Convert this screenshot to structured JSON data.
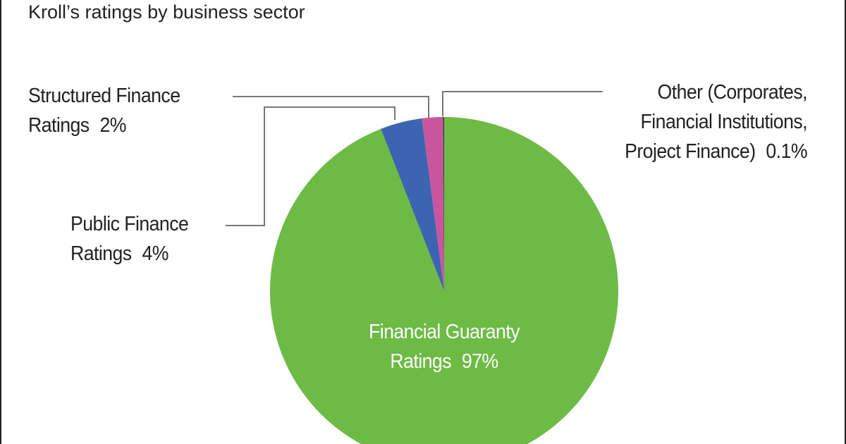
{
  "chart_data": {
    "type": "pie",
    "subtitle": "Kroll’s ratings by business sector",
    "categories": [
      "Financial Guaranty Ratings",
      "Public Finance Ratings",
      "Structured Finance Ratings",
      "Other (Corporates, Financial Institutions, Project Finance)"
    ],
    "values": [
      97,
      4,
      2,
      0.1
    ],
    "value_labels": [
      "97%",
      "4%",
      "2%",
      "0.1%"
    ],
    "colors": [
      "#6dbb45",
      "#3d64b0",
      "#c9559f",
      "#3a3a3a"
    ]
  }
}
